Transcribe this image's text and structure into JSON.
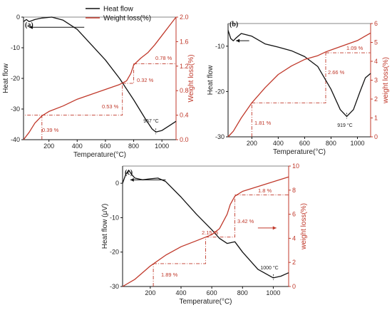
{
  "colors": {
    "heat": "#111111",
    "loss": "#c0392b"
  },
  "chart_data": [
    {
      "panel": "(a)",
      "type": "line",
      "xlabel": "Temperature(°C)",
      "ylabel": "Heat flow",
      "y2label": "Weight loss(%)",
      "xlim": [
        20,
        1100
      ],
      "ylim": [
        -40,
        0
      ],
      "y2lim": [
        0,
        2.0
      ],
      "xticks": [
        200,
        400,
        600,
        800,
        1000
      ],
      "yticks": [
        0,
        -10,
        -20,
        -30,
        -40
      ],
      "y2ticks": [
        "0.0",
        "0.4",
        "0.8",
        "1.2",
        "1.6",
        "2.0"
      ],
      "legend": {
        "position": "top-right",
        "entries": [
          "Heat flow",
          "Weight loss(%)"
        ]
      },
      "peak_label": "957 °C",
      "step_labels": [
        "0.39 %",
        "0.53 %",
        "0.32 %",
        "0.78 %"
      ],
      "series": [
        {
          "name": "Heat flow",
          "axis": "left",
          "x": [
            20,
            40,
            60,
            100,
            150,
            220,
            300,
            400,
            500,
            600,
            700,
            800,
            880,
            930,
            957,
            1000,
            1050,
            1100
          ],
          "y": [
            -1.5,
            -0.8,
            -1.5,
            -0.8,
            -0.3,
            0,
            -1,
            -4,
            -9,
            -14,
            -20,
            -27,
            -33,
            -36.5,
            -37.5,
            -37,
            -35.5,
            -34
          ]
        },
        {
          "name": "Weight loss(%)",
          "axis": "right",
          "x": [
            20,
            60,
            100,
            150,
            200,
            300,
            400,
            500,
            600,
            700,
            750,
            780,
            800,
            850,
            900,
            950,
            1000,
            1050,
            1100
          ],
          "y": [
            0,
            0.12,
            0.27,
            0.39,
            0.46,
            0.55,
            0.66,
            0.74,
            0.82,
            0.9,
            0.96,
            1.08,
            1.22,
            1.33,
            1.42,
            1.55,
            1.7,
            1.85,
            2.0
          ]
        }
      ],
      "guides": [
        {
          "x": [
            150,
            150,
            20
          ],
          "y": [
            0,
            0.4,
            0.4
          ]
        },
        {
          "x": [
            150,
            720,
            720
          ],
          "y": [
            0.4,
            0.4,
            0.92
          ]
        },
        {
          "x": [
            720,
            800,
            800
          ],
          "y": [
            0.92,
            0.92,
            1.24
          ]
        },
        {
          "x": [
            800,
            1100
          ],
          "y": [
            1.24,
            1.24
          ]
        }
      ],
      "arrows": [
        {
          "axis": "left",
          "x": [
            450,
            60
          ],
          "y": [
            -3.3,
            -3.3
          ]
        }
      ]
    },
    {
      "panel": "(b)",
      "type": "line",
      "xlabel": "Temperature(°C)",
      "ylabel": "Heat flow",
      "y2label": "weight loss(%)",
      "xlim": [
        20,
        1100
      ],
      "ylim": [
        -30,
        -5
      ],
      "y2lim": [
        0,
        6
      ],
      "xticks": [
        200,
        400,
        600,
        800,
        1000
      ],
      "yticks": [
        -10,
        -20,
        -30
      ],
      "y2ticks": [
        "0",
        "1",
        "2",
        "3",
        "4",
        "5",
        "6"
      ],
      "peak_label": "919 °C",
      "step_labels": [
        "1.81 %",
        "2.66 %",
        "1.09 %"
      ],
      "series": [
        {
          "name": "Heat flow",
          "axis": "left",
          "x": [
            20,
            40,
            60,
            80,
            120,
            200,
            300,
            400,
            500,
            600,
            700,
            800,
            870,
            919,
            970,
            1020,
            1060,
            1100
          ],
          "y": [
            -6.5,
            -8.3,
            -8.8,
            -8.2,
            -7.2,
            -7.8,
            -9.5,
            -10.2,
            -11,
            -12.3,
            -14.5,
            -19.5,
            -24,
            -25.5,
            -24,
            -20,
            -17,
            -16
          ]
        },
        {
          "name": "weight loss(%)",
          "axis": "right",
          "x": [
            20,
            60,
            120,
            200,
            300,
            400,
            500,
            600,
            700,
            760,
            800,
            900,
            1000,
            1100
          ],
          "y": [
            0,
            0.3,
            1.0,
            1.8,
            2.6,
            3.3,
            3.75,
            4.1,
            4.3,
            4.5,
            4.6,
            4.85,
            5.1,
            5.5
          ]
        }
      ],
      "guides": [
        {
          "x": [
            200,
            200
          ],
          "y": [
            0,
            1.8
          ]
        },
        {
          "x": [
            200,
            760,
            760
          ],
          "y": [
            1.8,
            1.8,
            4.45
          ]
        },
        {
          "x": [
            760,
            1100
          ],
          "y": [
            4.45,
            4.45
          ]
        }
      ],
      "arrows": [
        {
          "axis": "left",
          "x": [
            180,
            80
          ],
          "y": [
            -8.8,
            -8.8
          ]
        }
      ]
    },
    {
      "panel": "(c)",
      "type": "line",
      "xlabel": "Temperature(°C)",
      "ylabel": "Heat flow (μV)",
      "y2label": "weight loss(%)",
      "xlim": [
        20,
        1100
      ],
      "ylim": [
        -30,
        5
      ],
      "y2lim": [
        0,
        10
      ],
      "xticks": [
        200,
        400,
        600,
        800,
        1000
      ],
      "yticks": [
        0,
        -10,
        -20,
        -30
      ],
      "y2ticks": [
        "0",
        "2",
        "4",
        "6",
        "8",
        "10"
      ],
      "peak_label": "1000 °C",
      "step_labels": [
        "1.89 %",
        "2.15 %",
        "3.42 %",
        "1.8 %"
      ],
      "series": [
        {
          "name": "Heat flow",
          "axis": "left",
          "x": [
            20,
            40,
            60,
            80,
            100,
            150,
            200,
            250,
            300,
            400,
            500,
            600,
            650,
            700,
            750,
            800,
            900,
            1000,
            1050,
            1100
          ],
          "y": [
            0,
            2.5,
            3.8,
            2.5,
            1.5,
            1.0,
            1.3,
            1.5,
            0.5,
            -4,
            -9,
            -13.5,
            -16,
            -17.5,
            -17,
            -20,
            -25,
            -27.5,
            -27,
            -26
          ]
        },
        {
          "name": "weight loss(%)",
          "axis": "right",
          "x": [
            20,
            100,
            200,
            300,
            400,
            500,
            600,
            650,
            700,
            720,
            750,
            800,
            900,
            1000,
            1100
          ],
          "y": [
            0,
            0.6,
            1.7,
            2.6,
            3.3,
            3.8,
            4.3,
            4.8,
            6.0,
            6.8,
            7.5,
            7.9,
            8.3,
            8.7,
            9.1
          ]
        }
      ],
      "guides": [
        {
          "x": [
            220,
            220
          ],
          "y": [
            0,
            1.9
          ]
        },
        {
          "x": [
            220,
            560,
            560
          ],
          "y": [
            1.9,
            1.9,
            4.1
          ]
        },
        {
          "x": [
            560,
            750,
            750
          ],
          "y": [
            4.1,
            4.1,
            7.6
          ]
        },
        {
          "x": [
            750,
            1100
          ],
          "y": [
            7.6,
            7.6
          ]
        }
      ],
      "arrows": [
        {
          "axis": "left",
          "x": [
            300,
            70
          ],
          "y": [
            1.0,
            1.0
          ]
        },
        {
          "axis": "left",
          "x": [
            900,
            1020
          ],
          "y": [
            -13,
            -13
          ]
        }
      ]
    }
  ]
}
